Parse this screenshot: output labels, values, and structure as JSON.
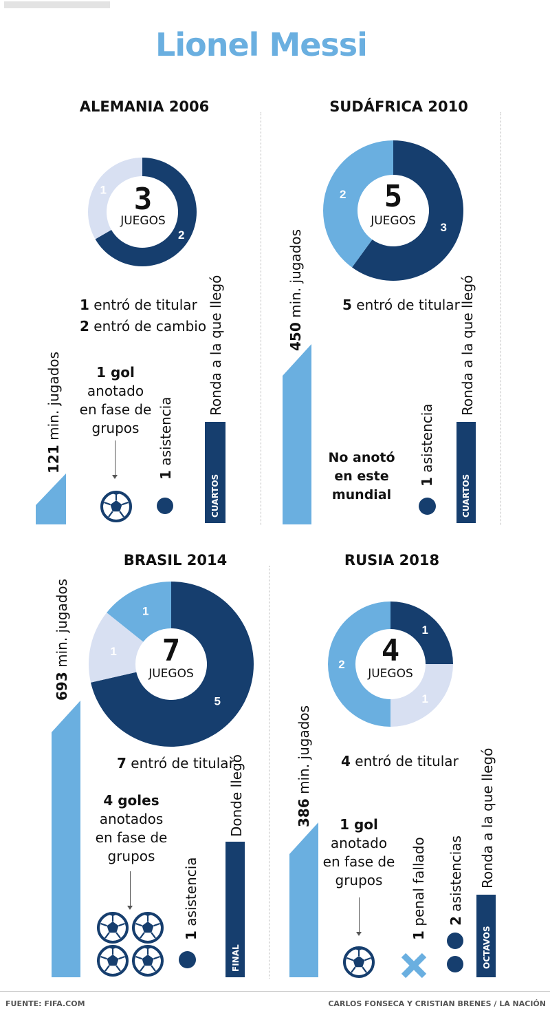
{
  "title": "Lionel Messi",
  "colors": {
    "dark": "#163e6e",
    "medium": "#6aafe0",
    "light": "#d8e0f2",
    "title": "#6aafe0"
  },
  "footer": {
    "source": "FUENTE: FIFA.COM",
    "credits": "CARLOS FONSECA Y CRISTIAN BRENES / LA NACIÓN"
  },
  "common": {
    "games_label": "JUEGOS",
    "min_suffix": " min. jugados",
    "round_label": "Ronda a la que llegó"
  },
  "sections": {
    "alemania": {
      "title": "ALEMANIA 2006",
      "games": "3",
      "donut": [
        {
          "label": "2",
          "value": 2,
          "tone": "dark"
        },
        {
          "label": "1",
          "value": 1,
          "tone": "light"
        }
      ],
      "starts": {
        "num": "1",
        "text": " entró de titular"
      },
      "subs": {
        "num": "2",
        "text": " entró de cambio"
      },
      "minutes": "121",
      "goals_bold": "1 gol",
      "goals_rest": [
        "anotado",
        "en fase de",
        "grupos"
      ],
      "assist_num": "1",
      "assist_text": " asistencia",
      "round": "CUARTOS"
    },
    "sudafrica": {
      "title": "SUDÁFRICA 2010",
      "games": "5",
      "donut": [
        {
          "label": "3",
          "value": 3,
          "tone": "dark"
        },
        {
          "label": "2",
          "value": 2,
          "tone": "medium"
        }
      ],
      "starts": {
        "num": "5",
        "text": " entró de titular"
      },
      "minutes": "450",
      "no_goal": [
        "No anotó",
        "en este",
        "mundial"
      ],
      "assist_num": "1",
      "assist_text": " asistencia",
      "round": "CUARTOS"
    },
    "brasil": {
      "title": "BRASIL 2014",
      "games": "7",
      "donut": [
        {
          "label": "5",
          "value": 5,
          "tone": "dark"
        },
        {
          "label": "1",
          "value": 1,
          "tone": "light"
        },
        {
          "label": "1",
          "value": 1,
          "tone": "medium"
        }
      ],
      "starts": {
        "num": "7",
        "text": " entró de titular"
      },
      "minutes": "693",
      "goals_bold": "4 goles",
      "goals_rest": [
        "anotados",
        "en fase de",
        "grupos"
      ],
      "assist_num": "1",
      "assist_text": " asistencia",
      "round_label": "Donde llegó",
      "round": "FINAL"
    },
    "rusia": {
      "title": "RUSIA 2018",
      "games": "4",
      "donut": [
        {
          "label": "1",
          "value": 1,
          "tone": "dark"
        },
        {
          "label": "1",
          "value": 1,
          "tone": "light"
        },
        {
          "label": "2",
          "value": 2,
          "tone": "medium"
        }
      ],
      "starts": {
        "num": "4",
        "text": " entró de titular"
      },
      "minutes": "386",
      "goals_bold": "1 gol",
      "goals_rest": [
        "anotado",
        "en fase de",
        "grupos"
      ],
      "penalty_num": "1",
      "penalty_text": " penal fallado",
      "assist_num": "2",
      "assist_text": " asistencias",
      "round": "OCTAVOS"
    }
  }
}
